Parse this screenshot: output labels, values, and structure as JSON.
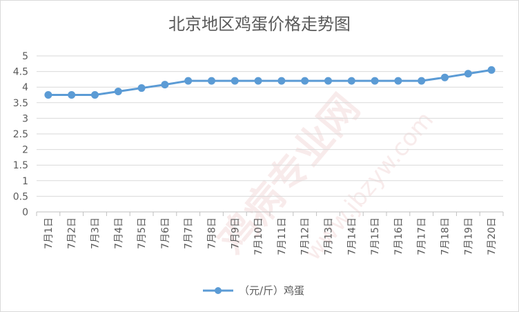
{
  "watermark": {
    "brand": "鸡病专业网",
    "url": "www.jbzyw.com"
  },
  "chart_data": {
    "type": "line",
    "title": "北京地区鸡蛋价格走势图",
    "categories": [
      "7月1日",
      "7月2日",
      "7月3日",
      "7月4日",
      "7月5日",
      "7月6日",
      "7月7日",
      "7月8日",
      "7月9日",
      "7月10日",
      "7月11日",
      "7月12日",
      "7月13日",
      "7月14日",
      "7月15日",
      "7月16日",
      "7月17日",
      "7月18日",
      "7月19日",
      "7月20日"
    ],
    "series": [
      {
        "name": "（元/斤）鸡蛋",
        "color": "#5b9bd5",
        "values": [
          3.75,
          3.75,
          3.75,
          3.86,
          3.97,
          4.08,
          4.2,
          4.2,
          4.2,
          4.2,
          4.2,
          4.2,
          4.2,
          4.2,
          4.2,
          4.2,
          4.2,
          4.31,
          4.43,
          4.55
        ]
      }
    ],
    "yticks": [
      "0",
      "0.5",
      "1",
      "1.5",
      "2",
      "2.5",
      "3",
      "3.5",
      "4",
      "4.5",
      "5"
    ],
    "ylim": [
      0,
      5
    ],
    "grid": true,
    "legend_position": "bottom"
  }
}
